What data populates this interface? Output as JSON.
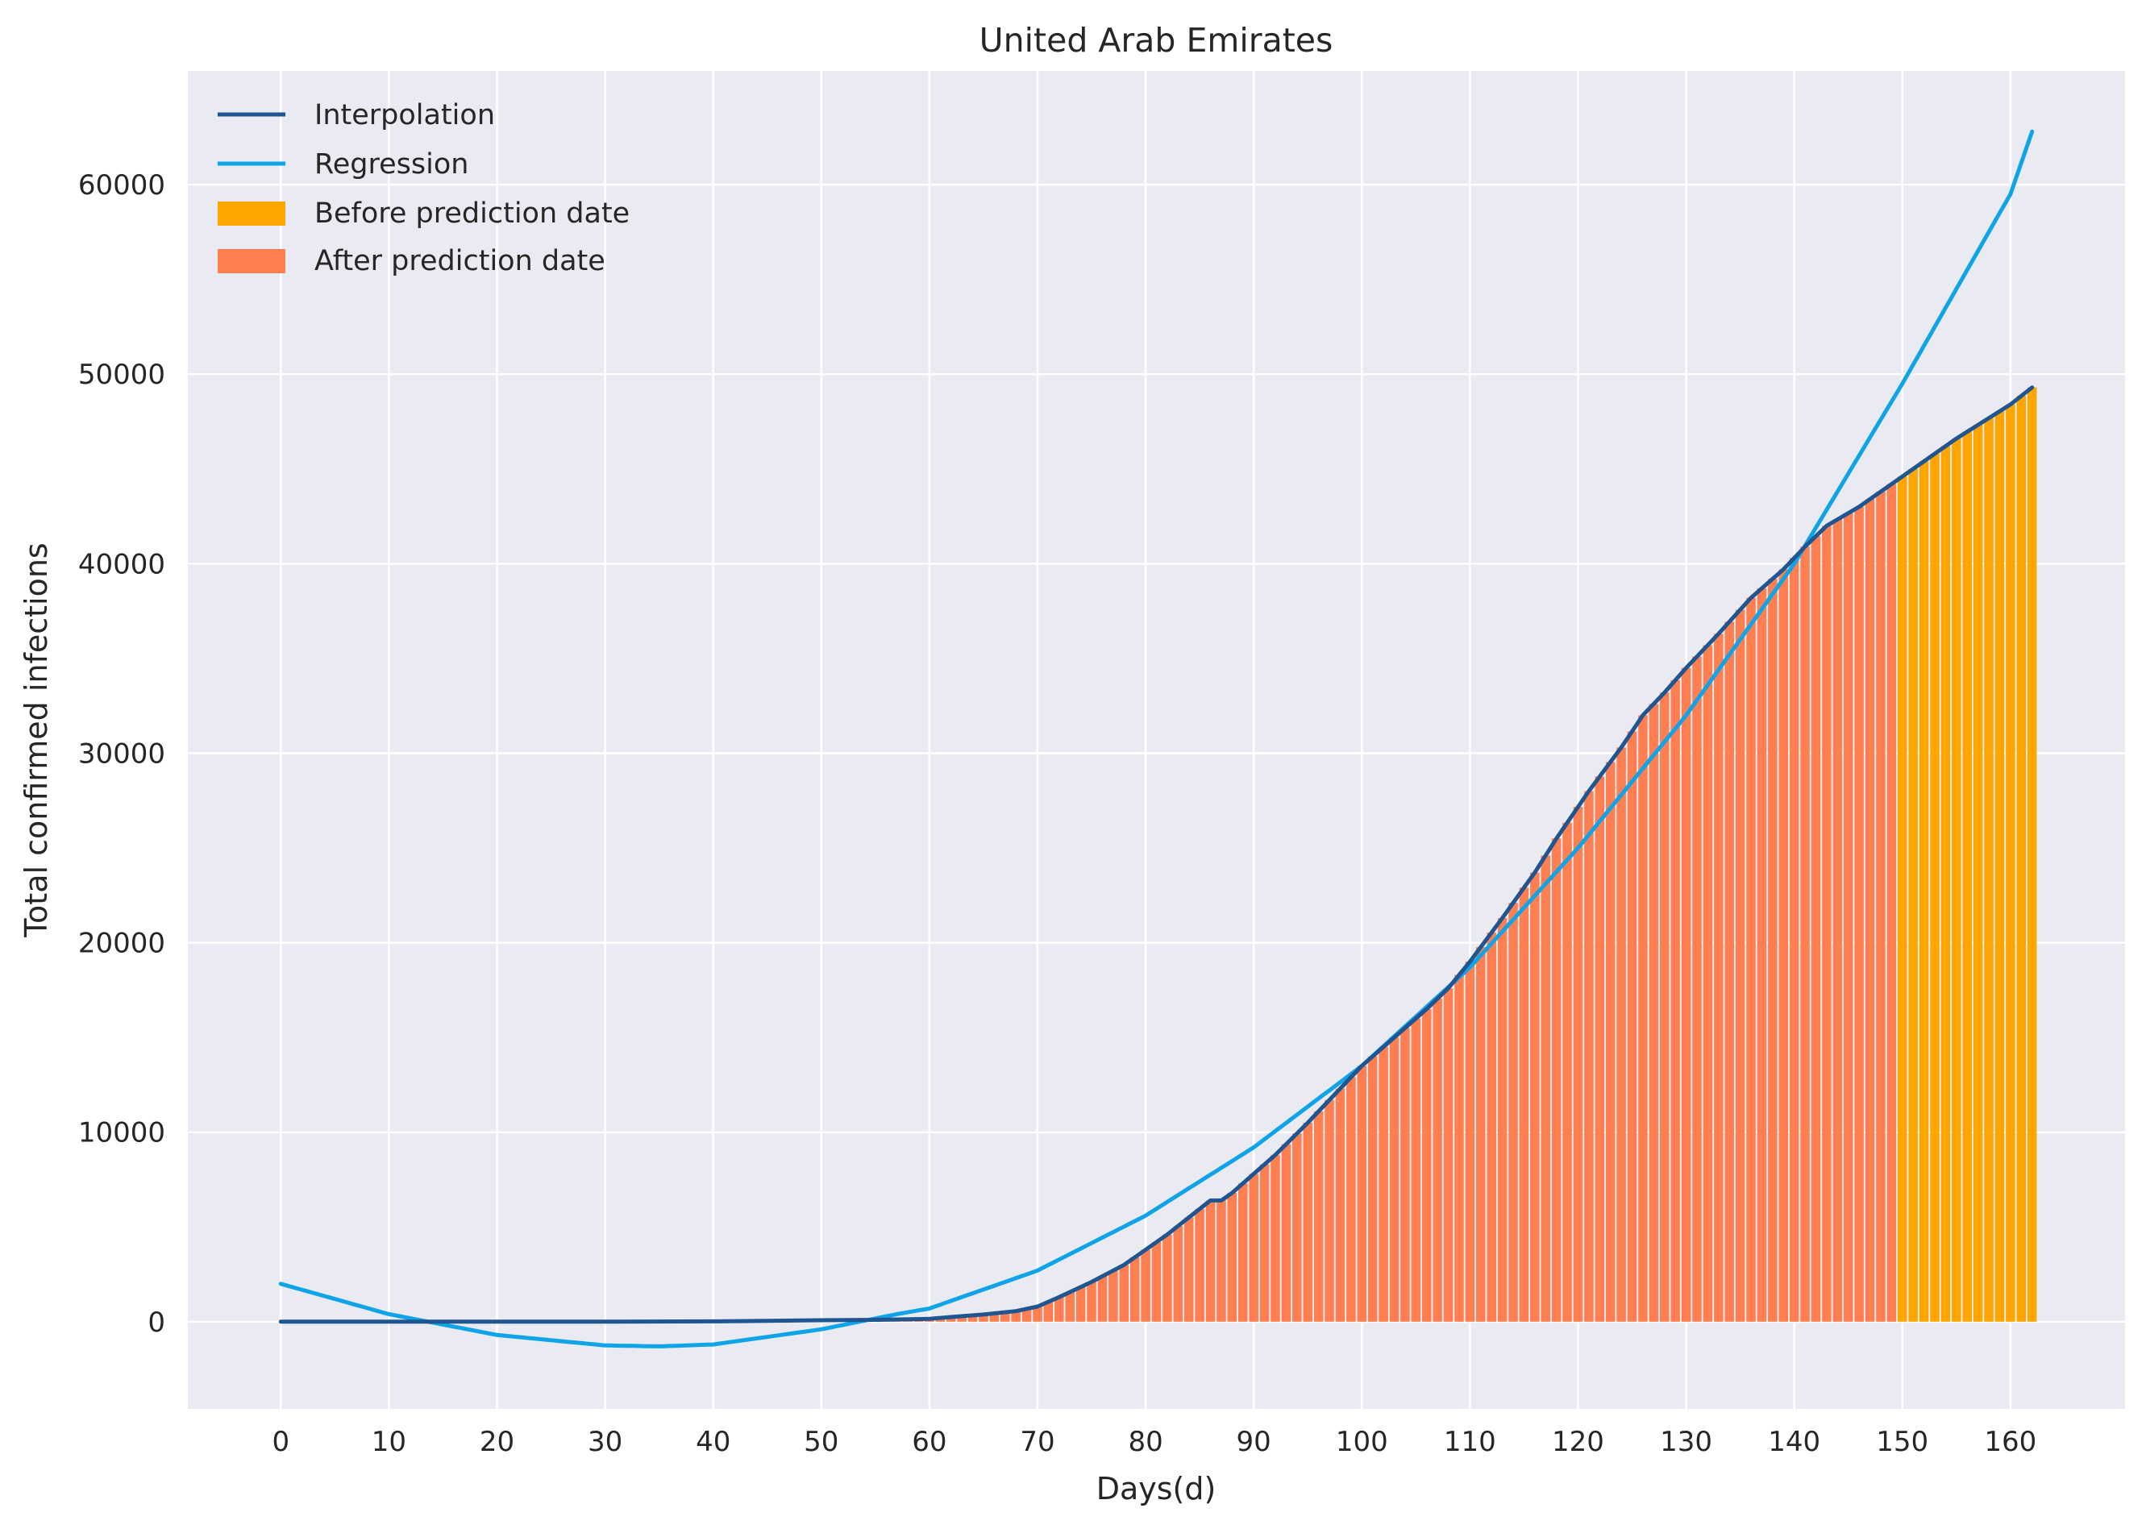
{
  "chart_data": {
    "type": "bar",
    "title": "United Arab Emirates",
    "xlabel": "Days(d)",
    "ylabel": "Total confirmed infections",
    "xlim": [
      -8.6,
      170.6
    ],
    "ylim": [
      -4600,
      66000
    ],
    "xticks": [
      0,
      10,
      20,
      30,
      40,
      50,
      60,
      70,
      80,
      90,
      100,
      110,
      120,
      130,
      140,
      150,
      160
    ],
    "yticks": [
      0,
      10000,
      20000,
      30000,
      40000,
      50000,
      60000
    ],
    "grid": true,
    "legend_position": "upper-left",
    "prediction_day": 150,
    "colors": {
      "background": "#eaeaf2",
      "grid": "#ffffff",
      "interpolation": "#1f5591",
      "regression": "#0fa4e8",
      "before_prediction": "#ffa500",
      "after_prediction": "#ff7f50"
    },
    "series": [
      {
        "name": "Interpolation",
        "kind": "line",
        "x": [
          0,
          10,
          20,
          30,
          40,
          45,
          50,
          55,
          60,
          62,
          65,
          68,
          70,
          72,
          75,
          78,
          80,
          82,
          84,
          86,
          87,
          88,
          90,
          92,
          95,
          98,
          100,
          103,
          106,
          108,
          110,
          113,
          116,
          118,
          121,
          124,
          126,
          128,
          130,
          133,
          136,
          139,
          141,
          143,
          146,
          150,
          155,
          160,
          162
        ],
        "y": [
          0,
          0,
          0,
          0,
          20,
          50,
          80,
          100,
          150,
          250,
          380,
          560,
          800,
          1300,
          2100,
          3000,
          3800,
          4600,
          5500,
          6400,
          6400,
          6800,
          7800,
          8800,
          10500,
          12300,
          13500,
          15000,
          16500,
          17600,
          19000,
          21300,
          23700,
          25500,
          28000,
          30300,
          32000,
          33200,
          34500,
          36300,
          38200,
          39700,
          40900,
          42000,
          43000,
          44600,
          46600,
          48400,
          49300
        ]
      },
      {
        "name": "Regression",
        "kind": "line",
        "fit": "quadratic",
        "x": [
          0,
          10,
          20,
          30,
          35,
          40,
          50,
          57,
          60,
          70,
          80,
          90,
          100,
          110,
          120,
          130,
          140,
          150,
          160,
          162
        ],
        "y": [
          2000,
          400,
          -700,
          -1250,
          -1300,
          -1200,
          -400,
          400,
          700,
          2700,
          5600,
          9200,
          13500,
          18700,
          25000,
          32000,
          40000,
          49500,
          59500,
          62800
        ]
      },
      {
        "name": "Before prediction date",
        "kind": "bar",
        "range": [
          150,
          162
        ]
      },
      {
        "name": "After prediction date",
        "kind": "bar",
        "range": [
          0,
          149
        ]
      }
    ]
  }
}
